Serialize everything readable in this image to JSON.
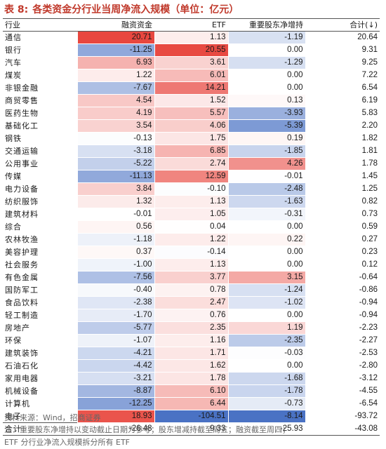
{
  "title": {
    "tag": "表 8:",
    "text": "各类资金分行业当周净流入规模（单位：亿元）"
  },
  "headers": [
    "行业",
    "融资资金",
    "ETF",
    "重要股东净增持",
    "合计(↓)"
  ],
  "rows": [
    {
      "industry": "通信",
      "financing": "20.71",
      "etf": "1.13",
      "holder": "-1.19",
      "total": "20.64"
    },
    {
      "industry": "银行",
      "financing": "-11.25",
      "etf": "20.55",
      "holder": "0.00",
      "total": "9.31"
    },
    {
      "industry": "汽车",
      "financing": "6.93",
      "etf": "3.61",
      "holder": "-1.29",
      "total": "9.25"
    },
    {
      "industry": "煤炭",
      "financing": "1.22",
      "etf": "6.01",
      "holder": "0.00",
      "total": "7.22"
    },
    {
      "industry": "非银金融",
      "financing": "-7.67",
      "etf": "14.21",
      "holder": "0.00",
      "total": "6.54"
    },
    {
      "industry": "商贸零售",
      "financing": "4.54",
      "etf": "1.52",
      "holder": "0.13",
      "total": "6.19"
    },
    {
      "industry": "医药生物",
      "financing": "4.19",
      "etf": "5.57",
      "holder": "-3.93",
      "total": "5.83"
    },
    {
      "industry": "基础化工",
      "financing": "3.54",
      "etf": "4.06",
      "holder": "-5.39",
      "total": "2.20"
    },
    {
      "industry": "钢铁",
      "financing": "-0.13",
      "etf": "1.75",
      "holder": "0.19",
      "total": "1.82"
    },
    {
      "industry": "交通运输",
      "financing": "-3.18",
      "etf": "6.85",
      "holder": "-1.85",
      "total": "1.81"
    },
    {
      "industry": "公用事业",
      "financing": "-5.22",
      "etf": "2.74",
      "holder": "4.26",
      "total": "1.78"
    },
    {
      "industry": "传媒",
      "financing": "-11.13",
      "etf": "12.59",
      "holder": "-0.01",
      "total": "1.45"
    },
    {
      "industry": "电力设备",
      "financing": "3.84",
      "etf": "-0.10",
      "holder": "-2.48",
      "total": "1.25"
    },
    {
      "industry": "纺织服饰",
      "financing": "1.32",
      "etf": "1.13",
      "holder": "-1.63",
      "total": "0.82"
    },
    {
      "industry": "建筑材料",
      "financing": "-0.01",
      "etf": "1.05",
      "holder": "-0.31",
      "total": "0.73"
    },
    {
      "industry": "综合",
      "financing": "0.56",
      "etf": "0.04",
      "holder": "0.00",
      "total": "0.59"
    },
    {
      "industry": "农林牧渔",
      "financing": "-1.18",
      "etf": "1.22",
      "holder": "0.22",
      "total": "0.27"
    },
    {
      "industry": "美容护理",
      "financing": "0.37",
      "etf": "-0.14",
      "holder": "0.00",
      "total": "0.23"
    },
    {
      "industry": "社会服务",
      "financing": "-1.00",
      "etf": "1.13",
      "holder": "0.00",
      "total": "0.12"
    },
    {
      "industry": "有色金属",
      "financing": "-7.56",
      "etf": "3.77",
      "holder": "3.15",
      "total": "-0.64"
    },
    {
      "industry": "国防军工",
      "financing": "-0.40",
      "etf": "0.78",
      "holder": "-1.24",
      "total": "-0.86"
    },
    {
      "industry": "食品饮料",
      "financing": "-2.38",
      "etf": "2.47",
      "holder": "-1.02",
      "total": "-0.94"
    },
    {
      "industry": "轻工制造",
      "financing": "-1.70",
      "etf": "0.76",
      "holder": "0.00",
      "total": "-0.94"
    },
    {
      "industry": "房地产",
      "financing": "-5.77",
      "etf": "2.35",
      "holder": "1.19",
      "total": "-2.23"
    },
    {
      "industry": "环保",
      "financing": "-1.07",
      "etf": "1.16",
      "holder": "-2.35",
      "total": "-2.27"
    },
    {
      "industry": "建筑装饰",
      "financing": "-4.21",
      "etf": "1.71",
      "holder": "-0.03",
      "total": "-2.53"
    },
    {
      "industry": "石油石化",
      "financing": "-4.42",
      "etf": "1.62",
      "holder": "0.00",
      "total": "-2.80"
    },
    {
      "industry": "家用电器",
      "financing": "-3.21",
      "etf": "1.78",
      "holder": "-1.68",
      "total": "-3.12"
    },
    {
      "industry": "机械设备",
      "financing": "-8.87",
      "etf": "6.10",
      "holder": "-1.78",
      "total": "-4.55"
    },
    {
      "industry": "计算机",
      "financing": "-12.25",
      "etf": "6.44",
      "holder": "-0.73",
      "total": "-6.54"
    },
    {
      "industry": "电子",
      "financing": "18.93",
      "etf": "-104.51",
      "holder": "-8.14",
      "total": "-93.72"
    }
  ],
  "total_row": {
    "industry": "合计",
    "financing": "-26.48",
    "etf": "9.33",
    "holder": "-25.93",
    "total": "-43.08"
  },
  "footer": {
    "source": "资料来源：Wind，招商证券",
    "note": "注：重要股东净增持以变动截止日期为参考；股东增减持截至周五；融资截至周四；",
    "note2": "ETF 分行业净流入规模拆分所有 ETF"
  },
  "colors": {
    "positive": "#e8473f",
    "negative": "#4a72c4",
    "title": "#c0392b"
  }
}
